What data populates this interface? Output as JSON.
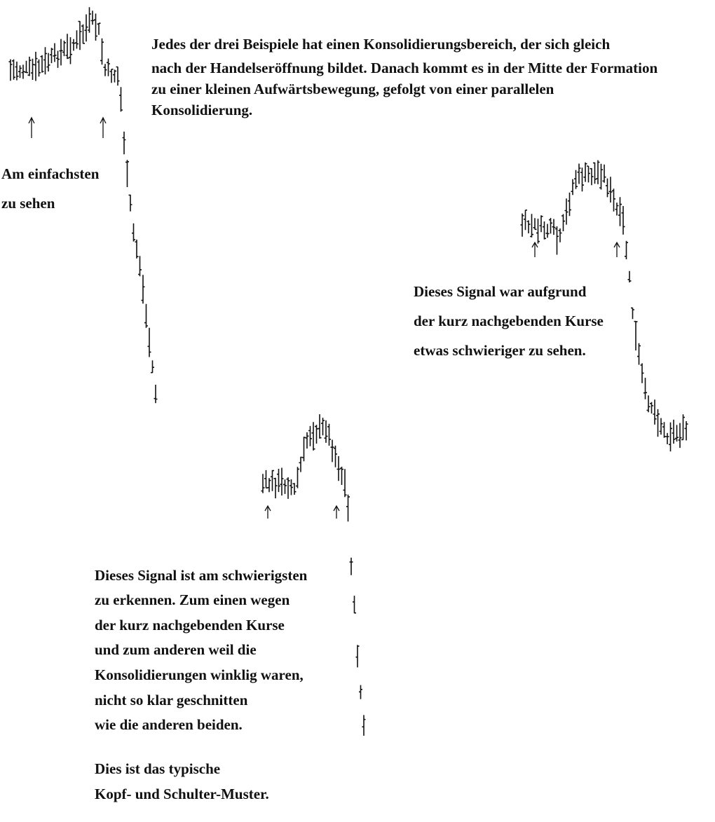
{
  "intro": {
    "lines": [
      "Jedes der drei Beispiele hat einen Konsolidierungsbereich, der sich gleich",
      "nach der Handelseröffnung bildet. Danach kommt es in der Mitte der Formation",
      "zu einer kleinen Aufwärtsbewegung, gefolgt von einer parallelen",
      "Konsolidierung."
    ]
  },
  "example_1": {
    "lines": [
      "Am einfachsten",
      "zu sehen"
    ]
  },
  "example_2": {
    "lines": [
      "Dieses Signal war aufgrund",
      "der kurz nachgebenden Kurse",
      "etwas schwieriger zu sehen."
    ]
  },
  "example_3": {
    "lines": [
      "Dieses Signal ist am schwierigsten",
      "zu erkennen. Zum einen wegen",
      "der kurz nachgebenden Kurse",
      "und zum anderen weil die",
      "Konsolidierungen winklig waren,",
      "nicht so klar geschnitten",
      "wie die anderen beiden."
    ]
  },
  "conclusion": {
    "lines": [
      "Dies ist das typische",
      "Kopf- und Schulter-Muster."
    ]
  }
}
